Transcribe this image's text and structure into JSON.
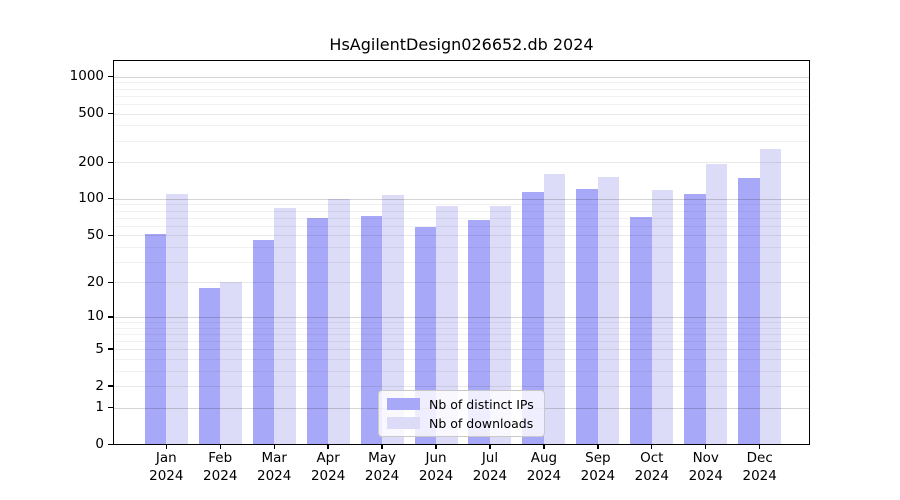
{
  "chart_data": {
    "type": "bar",
    "title": "HsAgilentDesign026652.db 2024",
    "categories": [
      "Jan",
      "Feb",
      "Mar",
      "Apr",
      "May",
      "Jun",
      "Jul",
      "Aug",
      "Sep",
      "Oct",
      "Nov",
      "Dec"
    ],
    "x_year_label": "2024",
    "series": [
      {
        "name": "Nb of distinct IPs",
        "color": "#a8a8f8",
        "values": [
          51,
          18,
          46,
          69,
          72,
          58,
          67,
          114,
          120,
          71,
          110,
          147
        ]
      },
      {
        "name": "Nb of downloads",
        "color": "#dcdcf8",
        "values": [
          110,
          20,
          84,
          100,
          107,
          87,
          88,
          160,
          150,
          119,
          193,
          259
        ]
      }
    ],
    "yscale": "log1p",
    "ylim": [
      0,
      1370
    ],
    "yticks": [
      0,
      1,
      2,
      5,
      10,
      20,
      50,
      100,
      200,
      500,
      1000
    ],
    "major_gridlines": [
      1,
      10,
      100,
      1000
    ],
    "minor_gridlines": [
      2,
      3,
      4,
      5,
      6,
      7,
      8,
      9,
      20,
      30,
      40,
      50,
      60,
      70,
      80,
      90,
      200,
      300,
      400,
      500,
      600,
      700,
      800,
      900
    ],
    "grid": true,
    "legend_position": "lower-center",
    "background": "#ffffff",
    "axis_color": "#000000"
  }
}
